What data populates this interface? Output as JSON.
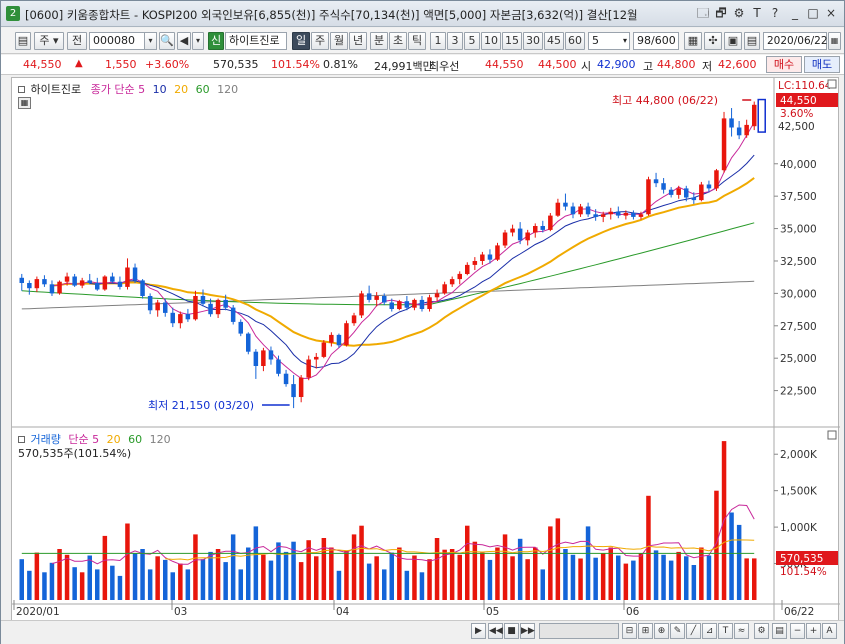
{
  "window": {
    "number": "2",
    "title": "[0600] 키움종합차트 - KOSPI200 외국인보유[6,855(천)] 주식수[70,134(천)] 액면[5,000] 자본금[3,632(억)] 결산[12월",
    "buttons": [
      "🗔",
      "🗗",
      "⚙",
      "T",
      "?",
      "_",
      "□",
      "×"
    ]
  },
  "toolbar": {
    "period_type": "주",
    "prev_label": "전",
    "code": "000080",
    "new_badge": "신",
    "stock_name": "하이트진로",
    "intervals": [
      "일",
      "주",
      "월",
      "년",
      "분",
      "초",
      "틱"
    ],
    "selected_interval": "일",
    "minute_steps": [
      "1",
      "3",
      "5",
      "10",
      "15",
      "30",
      "45",
      "60"
    ],
    "step_value": "5",
    "count": "98/600",
    "date": "2020/06/22"
  },
  "info": {
    "price": "44,550",
    "change": "1,550",
    "change_pct": "+3.60%",
    "volume": "570,535",
    "volume_ratio": "101.54%",
    "turnover": "0.81%",
    "trade_value": "24,991백만",
    "priority_label": "최우선",
    "ask": "44,550",
    "bid": "44,500",
    "open_label": "시",
    "open": "42,900",
    "high_label": "고",
    "high": "44,800",
    "low_label": "저",
    "low": "42,600",
    "buy_label": "매수",
    "sell_label": "매도"
  },
  "price_legend": {
    "name": "하이트진로",
    "series": "종가 단순",
    "ma": [
      "5",
      "10",
      "20",
      "60",
      "120"
    ]
  },
  "volume_legend": {
    "name": "거래량",
    "series": "단순",
    "ma": [
      "5",
      "20",
      "60",
      "120"
    ],
    "current": "570,535주(101.54%)"
  },
  "annotations": {
    "high": "최고 44,800 (06/22)",
    "low": "최저 21,150 (03/20)",
    "lc": "LC:110.64",
    "last_price": "44,550",
    "last_pct": "3.60%",
    "vol_last": "570,535",
    "vol_pct": "101.54%"
  },
  "colors": {
    "up": "#e8160c",
    "down": "#1464d8",
    "ma5": "#c8289a",
    "ma10": "#1a2ea8",
    "ma20": "#f0aa00",
    "ma60": "#2a9a2a",
    "ma120": "#808080"
  },
  "chart_data": {
    "type": "candlestick",
    "price_axis": {
      "ticks": [
        "40,000",
        "37,500",
        "35,000",
        "32,500",
        "30,000",
        "27,500",
        "25,000",
        "22,500"
      ],
      "values": [
        40000,
        37500,
        35000,
        32500,
        30000,
        27500,
        25000,
        22500
      ],
      "extra_ticks": [
        "42,500"
      ],
      "range": [
        20000,
        46000
      ]
    },
    "volume_axis": {
      "ticks": [
        "2,000K",
        "1,500K",
        "1,000K",
        "500K"
      ],
      "values": [
        2000000,
        1500000,
        1000000,
        500000
      ],
      "range": [
        0,
        2250000
      ]
    },
    "x_labels": [
      "2020/01",
      "03",
      "04",
      "05",
      "06",
      "06/22"
    ],
    "candles": [
      [
        31200,
        31500,
        30200,
        30800
      ],
      [
        30800,
        31000,
        29900,
        30400
      ],
      [
        30400,
        31300,
        30100,
        31100
      ],
      [
        31100,
        31400,
        30500,
        30700
      ],
      [
        30700,
        31000,
        29800,
        30000
      ],
      [
        30000,
        31000,
        29900,
        30900
      ],
      [
        30900,
        31600,
        30600,
        31300
      ],
      [
        31300,
        31500,
        30500,
        30600
      ],
      [
        30600,
        31200,
        30400,
        31000
      ],
      [
        31000,
        31500,
        30700,
        30800
      ],
      [
        30800,
        31200,
        30200,
        30300
      ],
      [
        30300,
        31400,
        30200,
        31300
      ],
      [
        31300,
        31600,
        30800,
        30900
      ],
      [
        30900,
        31300,
        30300,
        30500
      ],
      [
        30500,
        32700,
        30300,
        32000
      ],
      [
        32000,
        32300,
        30800,
        31000
      ],
      [
        31000,
        31100,
        29600,
        29800
      ],
      [
        29800,
        30000,
        28400,
        28700
      ],
      [
        28700,
        29500,
        28200,
        29300
      ],
      [
        29300,
        29600,
        28200,
        28500
      ],
      [
        28500,
        28900,
        27400,
        27700
      ],
      [
        27700,
        28600,
        27300,
        28400
      ],
      [
        28400,
        28800,
        27800,
        28000
      ],
      [
        28000,
        30200,
        27900,
        29800
      ],
      [
        29800,
        30300,
        29000,
        29200
      ],
      [
        29200,
        29600,
        28200,
        28400
      ],
      [
        28400,
        29600,
        28100,
        29500
      ],
      [
        29500,
        29900,
        28700,
        28900
      ],
      [
        28900,
        29100,
        27600,
        27800
      ],
      [
        27800,
        28000,
        26700,
        26900
      ],
      [
        26900,
        27000,
        25300,
        25500
      ],
      [
        25500,
        25700,
        23400,
        24400
      ],
      [
        24400,
        25800,
        24000,
        25600
      ],
      [
        25600,
        25900,
        24500,
        24900
      ],
      [
        24900,
        25200,
        23600,
        23800
      ],
      [
        23800,
        24100,
        22800,
        23000
      ],
      [
        23000,
        23700,
        21150,
        22000
      ],
      [
        22000,
        23700,
        21600,
        23500
      ],
      [
        23500,
        25200,
        23300,
        24900
      ],
      [
        24900,
        25400,
        24200,
        25100
      ],
      [
        25100,
        26400,
        25000,
        26200
      ],
      [
        26200,
        27000,
        25900,
        26800
      ],
      [
        26800,
        26900,
        25800,
        26000
      ],
      [
        26000,
        27900,
        25900,
        27700
      ],
      [
        27700,
        28500,
        27500,
        28300
      ],
      [
        28300,
        30200,
        28100,
        30000
      ],
      [
        30000,
        30600,
        29300,
        29500
      ],
      [
        29500,
        30100,
        29000,
        29800
      ],
      [
        29800,
        30000,
        29100,
        29300
      ],
      [
        29300,
        29600,
        28600,
        28800
      ],
      [
        28800,
        29500,
        28700,
        29400
      ],
      [
        29400,
        29800,
        28700,
        28900
      ],
      [
        28900,
        29600,
        28700,
        29500
      ],
      [
        29500,
        29800,
        28600,
        28800
      ],
      [
        28800,
        29900,
        28600,
        29700
      ],
      [
        29700,
        30300,
        29400,
        30000
      ],
      [
        30000,
        30900,
        29900,
        30700
      ],
      [
        30700,
        31300,
        30500,
        31100
      ],
      [
        31100,
        31700,
        30700,
        31500
      ],
      [
        31500,
        32400,
        31400,
        32200
      ],
      [
        32200,
        32800,
        31800,
        32500
      ],
      [
        32500,
        33200,
        32200,
        33000
      ],
      [
        33000,
        33400,
        32300,
        32600
      ],
      [
        32600,
        33900,
        32500,
        33700
      ],
      [
        33700,
        34900,
        33500,
        34700
      ],
      [
        34700,
        35300,
        34400,
        35000
      ],
      [
        35000,
        35500,
        33800,
        34100
      ],
      [
        34100,
        34900,
        33700,
        34700
      ],
      [
        34700,
        35400,
        34300,
        35200
      ],
      [
        35200,
        35600,
        34700,
        34900
      ],
      [
        34900,
        36200,
        34800,
        36000
      ],
      [
        36000,
        37300,
        35900,
        37000
      ],
      [
        37000,
        37700,
        36400,
        36700
      ],
      [
        36700,
        37000,
        35800,
        36100
      ],
      [
        36100,
        36900,
        35900,
        36700
      ],
      [
        36700,
        37000,
        35900,
        36100
      ],
      [
        36100,
        36500,
        35600,
        35900
      ],
      [
        35900,
        36300,
        35500,
        36100
      ],
      [
        36100,
        36600,
        35700,
        36300
      ],
      [
        36300,
        36700,
        35800,
        36000
      ],
      [
        36000,
        36400,
        35700,
        36200
      ],
      [
        36200,
        36400,
        35700,
        35900
      ],
      [
        35900,
        36300,
        35700,
        36100
      ],
      [
        36100,
        39000,
        36000,
        38800
      ],
      [
        38800,
        39300,
        38200,
        38500
      ],
      [
        38500,
        38900,
        37700,
        38000
      ],
      [
        38000,
        38200,
        37400,
        37600
      ],
      [
        37600,
        38300,
        37300,
        38100
      ],
      [
        38100,
        38300,
        37100,
        37400
      ],
      [
        37400,
        37800,
        36900,
        37200
      ],
      [
        37200,
        38600,
        37100,
        38400
      ],
      [
        38400,
        38700,
        37800,
        38100
      ],
      [
        38100,
        39600,
        37900,
        39500
      ],
      [
        39500,
        44000,
        39300,
        43500
      ],
      [
        43500,
        44300,
        42100,
        42800
      ],
      [
        42800,
        43300,
        41900,
        42200
      ],
      [
        42200,
        43400,
        42000,
        43000
      ],
      [
        42900,
        44800,
        42600,
        44550
      ]
    ],
    "volume": [
      560000,
      400000,
      650000,
      380000,
      510000,
      700000,
      620000,
      450000,
      380000,
      610000,
      420000,
      880000,
      470000,
      330000,
      1050000,
      640000,
      700000,
      420000,
      600000,
      550000,
      380000,
      500000,
      420000,
      900000,
      560000,
      660000,
      700000,
      520000,
      900000,
      420000,
      720000,
      1010000,
      620000,
      540000,
      790000,
      660000,
      800000,
      520000,
      820000,
      600000,
      850000,
      720000,
      400000,
      680000,
      900000,
      1020000,
      500000,
      600000,
      420000,
      650000,
      720000,
      400000,
      610000,
      380000,
      560000,
      850000,
      690000,
      700000,
      620000,
      1020000,
      800000,
      650000,
      550000,
      720000,
      900000,
      600000,
      840000,
      560000,
      720000,
      420000,
      1010000,
      1120000,
      700000,
      620000,
      570000,
      1010000,
      580000,
      640000,
      720000,
      610000,
      500000,
      540000,
      640000,
      1430000,
      680000,
      620000,
      540000,
      660000,
      600000,
      480000,
      720000,
      610000,
      1500000,
      2180000,
      1200000,
      1030000,
      570535,
      570535
    ],
    "ma5": [],
    "note": ""
  }
}
